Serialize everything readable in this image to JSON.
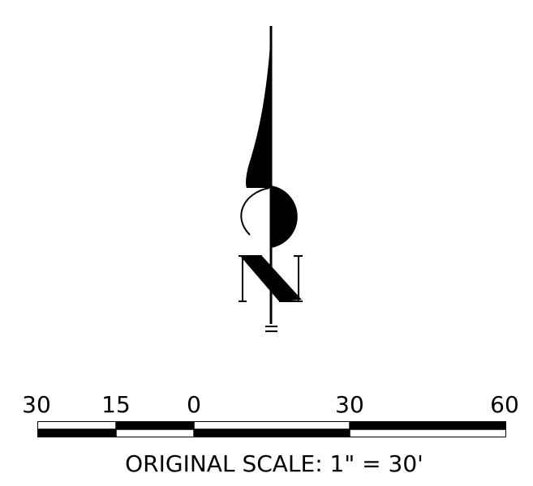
{
  "north_arrow": {
    "letter": "N"
  },
  "scale_bar": {
    "labels": [
      "30",
      "15",
      "0",
      "30",
      "60"
    ],
    "caption": "ORIGINAL SCALE: 1\" = 30'"
  },
  "colors": {
    "ink": "#000000",
    "paper": "#ffffff"
  },
  "icons": {
    "north_arrow": "north-arrow-icon"
  }
}
